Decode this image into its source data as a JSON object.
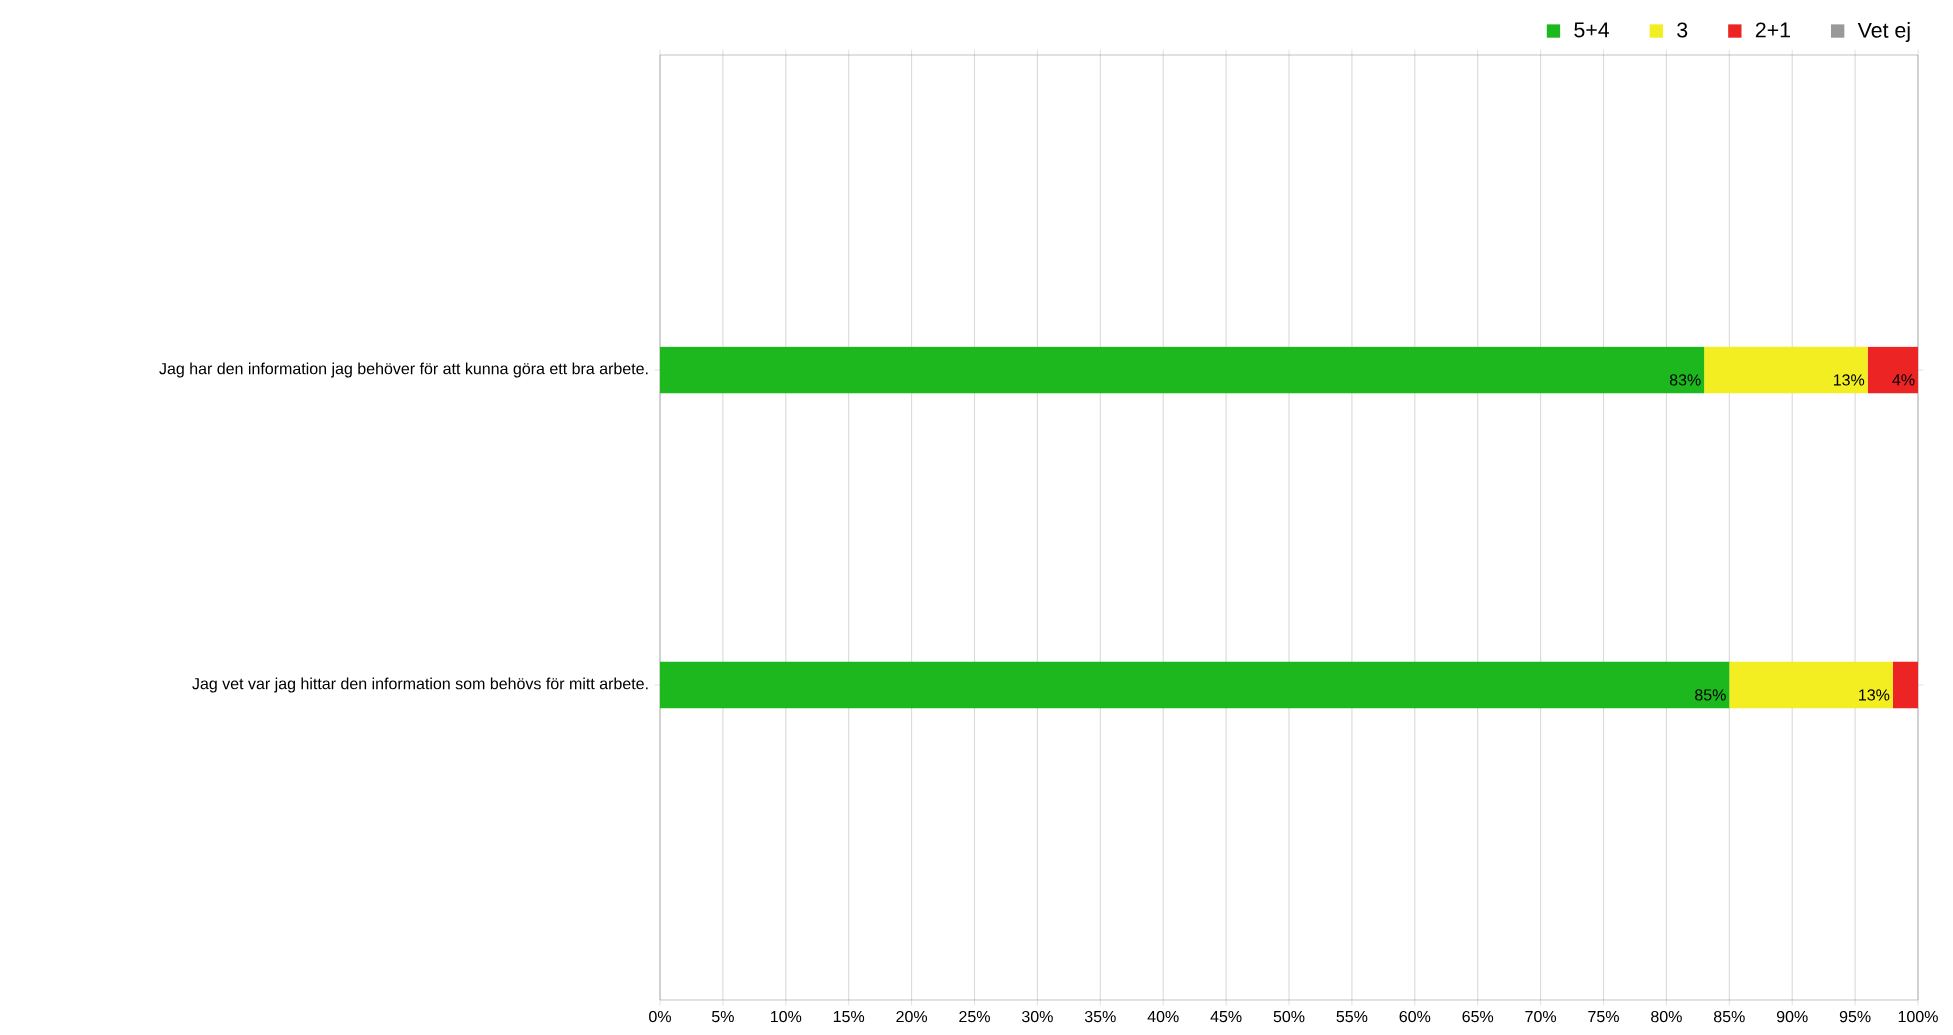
{
  "chart_data": {
    "type": "bar",
    "orientation": "horizontal",
    "stacked": true,
    "categories": [
      "Jag har den information jag behöver för att kunna göra ett bra arbete.",
      "Jag vet var jag hittar den information som behövs för mitt arbete."
    ],
    "series": [
      {
        "name": "5+4",
        "color": "#1db81d",
        "values": [
          83,
          85
        ],
        "value_labels": [
          "83%",
          "85%"
        ]
      },
      {
        "name": "3",
        "color": "#f2ee22",
        "values": [
          13,
          13
        ],
        "value_labels": [
          "13%",
          "13%"
        ]
      },
      {
        "name": "2+1",
        "color": "#ec2424",
        "values": [
          4,
          2
        ],
        "value_labels": [
          "4%",
          null
        ]
      },
      {
        "name": "Vet ej",
        "color": "#999999",
        "values": [
          0,
          0
        ]
      }
    ],
    "xlim": [
      0,
      100
    ],
    "xticks": [
      {
        "value": 0,
        "label": "0%"
      },
      {
        "value": 5,
        "label": "5%"
      },
      {
        "value": 10,
        "label": "10%"
      },
      {
        "value": 15,
        "label": "15%"
      },
      {
        "value": 20,
        "label": "20%"
      },
      {
        "value": 25,
        "label": "25%"
      },
      {
        "value": 30,
        "label": "30%"
      },
      {
        "value": 35,
        "label": "35%"
      },
      {
        "value": 40,
        "label": "40%"
      },
      {
        "value": 45,
        "label": "45%"
      },
      {
        "value": 50,
        "label": "50%"
      },
      {
        "value": 55,
        "label": "55%"
      },
      {
        "value": 60,
        "label": "60%"
      },
      {
        "value": 65,
        "label": "65%"
      },
      {
        "value": 70,
        "label": "70%"
      },
      {
        "value": 75,
        "label": "75%"
      },
      {
        "value": 80,
        "label": "80%"
      },
      {
        "value": 85,
        "label": "85%"
      },
      {
        "value": 90,
        "label": "90%"
      },
      {
        "value": 95,
        "label": "95%"
      },
      {
        "value": 100,
        "label": "100%"
      }
    ],
    "grid": "x",
    "legend": "top right"
  }
}
